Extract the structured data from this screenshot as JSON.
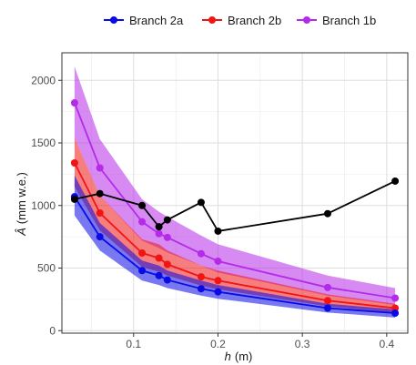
{
  "chart_data": {
    "type": "line",
    "xlabel_var": "h",
    "xlabel_unit": "(m)",
    "ylabel_var": "Â",
    "ylabel_unit": "(mm w.e.)",
    "xlim": [
      0.015,
      0.425
    ],
    "ylim": [
      -20,
      2220
    ],
    "x_ticks": [
      0.1,
      0.2,
      0.3,
      0.4
    ],
    "x_tick_labels": [
      "0.1",
      "0.2",
      "0.3",
      "0.4"
    ],
    "y_ticks": [
      0,
      500,
      1000,
      1500,
      2000
    ],
    "y_tick_labels": [
      "0",
      "500",
      "1000",
      "1500",
      "2000"
    ],
    "grid": true,
    "legend_position": "top",
    "series": [
      {
        "name": "Branch 1b",
        "color": "#B42AE8",
        "x": [
          0.03,
          0.06,
          0.11,
          0.13,
          0.14,
          0.18,
          0.2,
          0.33,
          0.41
        ],
        "values": [
          1820,
          1300,
          870,
          775,
          745,
          615,
          555,
          345,
          260
        ],
        "lower": [
          1540,
          1080,
          720,
          660,
          625,
          520,
          465,
          280,
          205
        ],
        "upper": [
          2110,
          1530,
          1050,
          950,
          910,
          760,
          690,
          440,
          340
        ]
      },
      {
        "name": "Branch 2b",
        "color": "#F01414",
        "x": [
          0.03,
          0.06,
          0.11,
          0.13,
          0.14,
          0.18,
          0.2,
          0.33,
          0.41
        ],
        "values": [
          1340,
          940,
          620,
          580,
          530,
          430,
          400,
          240,
          180
        ],
        "lower": [
          1150,
          800,
          510,
          470,
          440,
          360,
          330,
          195,
          145
        ],
        "upper": [
          1540,
          1080,
          730,
          690,
          640,
          520,
          480,
          290,
          215
        ]
      },
      {
        "name": "Branch 2a",
        "color": "#0A0AE6",
        "x": [
          0.03,
          0.06,
          0.11,
          0.13,
          0.14,
          0.18,
          0.2,
          0.33,
          0.41
        ],
        "values": [
          1070,
          750,
          480,
          440,
          405,
          335,
          310,
          180,
          140
        ],
        "lower": [
          920,
          640,
          400,
          365,
          340,
          280,
          255,
          145,
          105
        ],
        "upper": [
          1240,
          860,
          560,
          520,
          480,
          400,
          365,
          215,
          170
        ]
      },
      {
        "name": "",
        "color": "#000000",
        "x": [
          0.03,
          0.06,
          0.11,
          0.13,
          0.14,
          0.18,
          0.2,
          0.33,
          0.41
        ],
        "values": [
          1050,
          1095,
          1000,
          830,
          885,
          1025,
          795,
          935,
          1195
        ]
      }
    ],
    "legend": [
      {
        "name": "Branch 2a",
        "color": "#0A0AE6"
      },
      {
        "name": "Branch 2b",
        "color": "#F01414"
      },
      {
        "name": "Branch 1b",
        "color": "#B42AE8"
      }
    ]
  }
}
